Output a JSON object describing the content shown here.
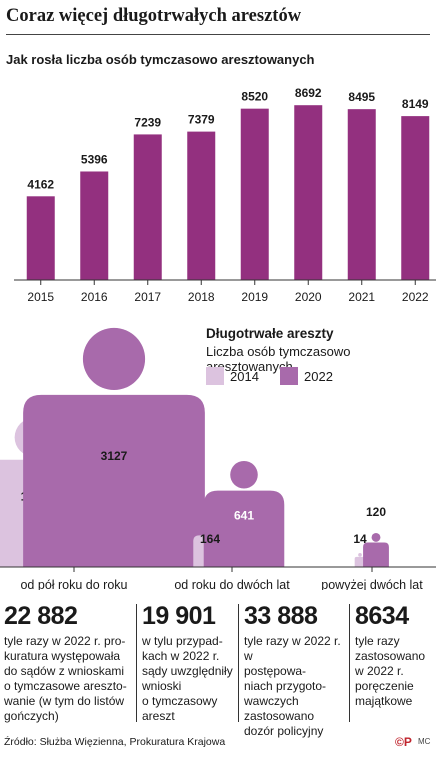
{
  "title": "Coraz więcej długotrwałych aresztów",
  "chart_data": [
    {
      "type": "bar",
      "title": "Jak rosła liczba osób tymczasowo aresztowanych",
      "categories": [
        "2015",
        "2016",
        "2017",
        "2018",
        "2019",
        "2020",
        "2021",
        "2022"
      ],
      "values": [
        4162,
        5396,
        7239,
        7379,
        8520,
        8692,
        8495,
        8149
      ],
      "ylim": [
        0,
        9000
      ],
      "color": "#93307f"
    },
    {
      "type": "bar",
      "title": "Długotrwałe areszty",
      "subtitle": "Liczba osób tymczasowo aresztowanych",
      "categories": [
        "od pół roku do roku",
        "od roku do dwóch lat",
        "powyżej dwóch lat"
      ],
      "series": [
        {
          "name": "2014",
          "values": [
            1763,
            164,
            14
          ],
          "color": "#dcc3df"
        },
        {
          "name": "2022",
          "values": [
            3127,
            641,
            120
          ],
          "color": "#a86aab"
        }
      ]
    }
  ],
  "stats": [
    {
      "number": "22 882",
      "lines": [
        "tyle razy w 2022 r. pro-",
        "kuratura występowała",
        "do sądów z wnioskami",
        "o tymczasowe areszto-",
        "wanie (w tym do listów",
        "gończych)"
      ]
    },
    {
      "number": "19 901",
      "lines": [
        "w tylu przypad-",
        "kach w 2022 r.",
        "sądy uwzględniły",
        "wnioski",
        "o tymczasowy",
        "areszt"
      ]
    },
    {
      "number": "33 888",
      "lines": [
        "tyle razy w 2022 r. w",
        "postępowa-",
        "niach przygoto-",
        "wawczych",
        "zastosowano",
        "dozór policyjny"
      ]
    },
    {
      "number": "8634",
      "lines": [
        "tyle razy",
        "zastosowano",
        "w 2022 r.",
        "poręczenie",
        "majątkowe"
      ]
    }
  ],
  "source": "Źródło: Służba Więzienna, Prokuratura Krajowa",
  "logo": "©P",
  "credit": "MC",
  "colors": {
    "accent": "#93307f",
    "light": "#dcc3df",
    "mid": "#a86aab"
  }
}
